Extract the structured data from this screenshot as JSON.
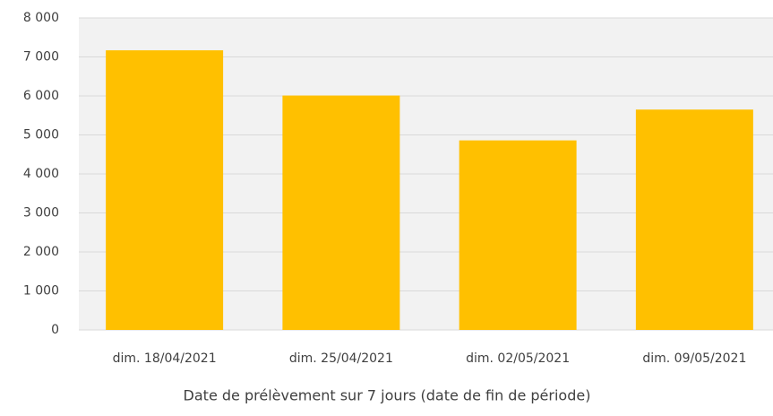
{
  "chart_data": {
    "type": "bar",
    "x_label": "Date de prélèvement sur 7 jours (date de fin de période)",
    "categories": [
      "dim. 18/04/2021",
      "dim. 25/04/2021",
      "dim. 02/05/2021",
      "dim. 09/05/2021"
    ],
    "values": [
      7170,
      6010,
      4860,
      5650
    ],
    "color": "#ffc000",
    "ylim": [
      0,
      8000
    ],
    "yticks": [
      0,
      {
        "value": 1000,
        "label": "1 000"
      },
      {
        "value": 2000,
        "label": "2 000"
      },
      {
        "value": 3000,
        "label": "3 000"
      },
      {
        "value": 4000,
        "label": "4 000"
      },
      {
        "value": 5000,
        "label": "5 000"
      },
      {
        "value": 6000,
        "label": "6 000"
      },
      {
        "value": 7000,
        "label": "7 000"
      },
      {
        "value": 8000,
        "label": "8 000"
      }
    ],
    "grid": true
  }
}
